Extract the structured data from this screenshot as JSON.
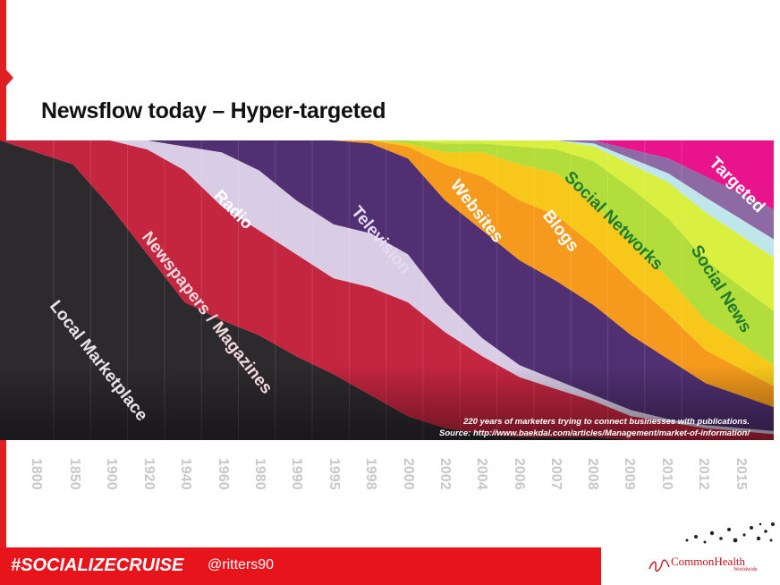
{
  "title": "Newsflow today – Hyper-targeted",
  "footer": {
    "hashtag": "#SOCIALIZECRUISE",
    "handle": "@ritters90",
    "brand": "CommonHealth",
    "brand_sub": "Worldwide"
  },
  "chart_data": {
    "type": "area",
    "stacked": "100%",
    "x": [
      "1800",
      "1850",
      "1900",
      "1920",
      "1940",
      "1960",
      "1980",
      "1990",
      "1995",
      "1998",
      "2000",
      "2002",
      "2004",
      "2006",
      "2007",
      "2008",
      "2009",
      "2010",
      "2012",
      "2015"
    ],
    "series": [
      {
        "name": "Local Marketplace",
        "color": "#2d2a2e",
        "values": [
          100,
          92,
          78,
          62,
          46,
          40,
          35,
          28,
          22,
          15,
          8,
          4,
          2,
          1,
          1,
          1,
          0,
          0,
          0,
          0
        ]
      },
      {
        "name": "Newspapers / Magazines",
        "color": "#c4253f",
        "values": [
          0,
          8,
          22,
          35,
          44,
          38,
          35,
          34,
          32,
          36,
          38,
          32,
          26,
          20,
          16,
          12,
          8,
          6,
          4,
          2
        ]
      },
      {
        "name": "Radio",
        "color": "#d9cde6",
        "values": [
          0,
          0,
          0,
          3,
          8,
          18,
          20,
          18,
          18,
          18,
          16,
          10,
          6,
          4,
          3,
          2,
          2,
          1,
          1,
          1
        ]
      },
      {
        "name": "Television",
        "color": "#503072",
        "values": [
          0,
          0,
          0,
          0,
          2,
          4,
          10,
          20,
          28,
          30,
          32,
          34,
          36,
          35,
          33,
          30,
          25,
          20,
          14,
          8
        ]
      },
      {
        "name": "Websites",
        "color": "#f59a1c",
        "values": [
          0,
          0,
          0,
          0,
          0,
          0,
          0,
          0,
          0,
          1,
          4,
          12,
          18,
          20,
          22,
          20,
          18,
          15,
          11,
          7
        ]
      },
      {
        "name": "Blogs",
        "color": "#f7c81a",
        "values": [
          0,
          0,
          0,
          0,
          0,
          0,
          0,
          0,
          0,
          0,
          1,
          4,
          8,
          12,
          14,
          14,
          13,
          12,
          10,
          7
        ]
      },
      {
        "name": "Social Networks",
        "color": "#b3dd3b",
        "values": [
          0,
          0,
          0,
          0,
          0,
          0,
          0,
          0,
          0,
          0,
          1,
          3,
          3,
          6,
          8,
          14,
          18,
          20,
          20,
          18
        ]
      },
      {
        "name": "Social News",
        "color": "#d9f040",
        "values": [
          0,
          0,
          0,
          0,
          0,
          0,
          0,
          0,
          0,
          0,
          0,
          1,
          1,
          2,
          3,
          5,
          8,
          12,
          16,
          18
        ]
      },
      {
        "name": "",
        "color": "#bfe6ea",
        "values": [
          0,
          0,
          0,
          0,
          0,
          0,
          0,
          0,
          0,
          0,
          0,
          0,
          0,
          0,
          0,
          1,
          2,
          3,
          5,
          6
        ]
      },
      {
        "name": "",
        "color": "#8e6aa5",
        "values": [
          0,
          0,
          0,
          0,
          0,
          0,
          0,
          0,
          0,
          0,
          0,
          0,
          0,
          0,
          0,
          1,
          3,
          5,
          7,
          10
        ]
      },
      {
        "name": "Targeted",
        "color": "#e9148c",
        "values": [
          0,
          0,
          0,
          0,
          0,
          0,
          0,
          0,
          0,
          0,
          0,
          0,
          0,
          0,
          0,
          0,
          3,
          6,
          12,
          23
        ]
      }
    ],
    "annotation_line1": "220 years of marketers trying to connect businesses with publications.",
    "annotation_line2": "Source: http://www.baekdal.com/articles/Management/market-of-information/"
  }
}
